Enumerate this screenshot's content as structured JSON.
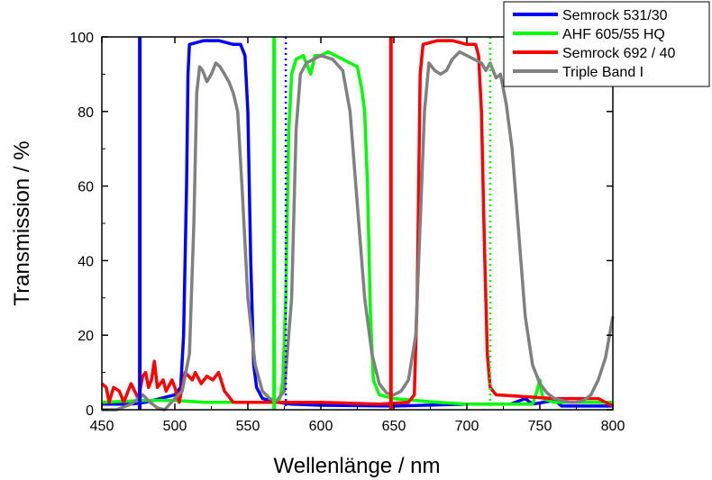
{
  "chart_data": {
    "type": "line",
    "title": "",
    "xlabel": "Wellenlänge / nm",
    "ylabel": "Transmission / %",
    "xlim": [
      450,
      800
    ],
    "ylim": [
      0,
      100
    ],
    "xticks": [
      450,
      500,
      550,
      600,
      650,
      700,
      750,
      800
    ],
    "yticks": [
      0,
      20,
      40,
      60,
      80,
      100
    ],
    "grid": false,
    "legend_position": "top-right",
    "colors": {
      "blue": "#0000ff",
      "green": "#00ff00",
      "red": "#ff0000",
      "gray": "#808080"
    },
    "series": [
      {
        "name": "Semrock 531/30",
        "color": "#0000ff",
        "points": [
          [
            450,
            1.5
          ],
          [
            470,
            1.5
          ],
          [
            480,
            2
          ],
          [
            490,
            3
          ],
          [
            500,
            4
          ],
          [
            504,
            6
          ],
          [
            506,
            20
          ],
          [
            508,
            60
          ],
          [
            509,
            90
          ],
          [
            510,
            98
          ],
          [
            520,
            99
          ],
          [
            530,
            99
          ],
          [
            540,
            98
          ],
          [
            545,
            98
          ],
          [
            548,
            95
          ],
          [
            550,
            80
          ],
          [
            552,
            40
          ],
          [
            554,
            12
          ],
          [
            556,
            6
          ],
          [
            560,
            3
          ],
          [
            565,
            2.5
          ],
          [
            570,
            2
          ],
          [
            580,
            1.5
          ],
          [
            600,
            1.2
          ],
          [
            650,
            1
          ],
          [
            700,
            1.5
          ],
          [
            730,
            1.5
          ],
          [
            740,
            3
          ],
          [
            745,
            1.5
          ],
          [
            760,
            2.5
          ],
          [
            765,
            1
          ],
          [
            800,
            1
          ]
        ]
      },
      {
        "name": "AHF 605/55 HQ",
        "color": "#00ff00",
        "points": [
          [
            450,
            2
          ],
          [
            480,
            2.5
          ],
          [
            500,
            2.5
          ],
          [
            520,
            2
          ],
          [
            540,
            2
          ],
          [
            560,
            2
          ],
          [
            570,
            2
          ],
          [
            572,
            3
          ],
          [
            574,
            8
          ],
          [
            576,
            30
          ],
          [
            578,
            75
          ],
          [
            580,
            90
          ],
          [
            583,
            94
          ],
          [
            588,
            95
          ],
          [
            593,
            90
          ],
          [
            596,
            95
          ],
          [
            600,
            95
          ],
          [
            605,
            96
          ],
          [
            610,
            95
          ],
          [
            615,
            94
          ],
          [
            620,
            93
          ],
          [
            625,
            92
          ],
          [
            628,
            86
          ],
          [
            630,
            80
          ],
          [
            632,
            60
          ],
          [
            634,
            25
          ],
          [
            636,
            8
          ],
          [
            640,
            4
          ],
          [
            650,
            3
          ],
          [
            680,
            2
          ],
          [
            700,
            1.5
          ],
          [
            745,
            1.5
          ],
          [
            748,
            5
          ],
          [
            750,
            8
          ],
          [
            752,
            3
          ],
          [
            760,
            2
          ],
          [
            800,
            2
          ]
        ]
      },
      {
        "name": "Semrock 692 / 40",
        "color": "#ff0000",
        "points": [
          [
            450,
            7
          ],
          [
            453,
            6
          ],
          [
            455,
            2
          ],
          [
            458,
            6
          ],
          [
            462,
            5
          ],
          [
            465,
            2
          ],
          [
            470,
            7
          ],
          [
            475,
            3
          ],
          [
            478,
            9
          ],
          [
            480,
            10
          ],
          [
            482,
            6
          ],
          [
            484,
            8
          ],
          [
            486,
            13
          ],
          [
            488,
            6
          ],
          [
            492,
            8
          ],
          [
            494,
            5
          ],
          [
            498,
            8
          ],
          [
            500,
            6
          ],
          [
            503,
            2
          ],
          [
            507,
            10
          ],
          [
            512,
            8
          ],
          [
            514,
            10
          ],
          [
            518,
            7
          ],
          [
            522,
            9
          ],
          [
            526,
            8
          ],
          [
            530,
            10
          ],
          [
            534,
            5
          ],
          [
            540,
            2
          ],
          [
            560,
            2
          ],
          [
            600,
            2
          ],
          [
            640,
            1.5
          ],
          [
            660,
            2
          ],
          [
            664,
            4
          ],
          [
            666,
            30
          ],
          [
            668,
            90
          ],
          [
            670,
            98
          ],
          [
            680,
            99
          ],
          [
            690,
            99
          ],
          [
            700,
            98
          ],
          [
            706,
            98
          ],
          [
            708,
            95
          ],
          [
            710,
            80
          ],
          [
            712,
            45
          ],
          [
            714,
            15
          ],
          [
            716,
            6
          ],
          [
            720,
            4
          ],
          [
            760,
            3
          ],
          [
            780,
            3
          ],
          [
            790,
            3
          ],
          [
            800,
            1
          ]
        ]
      },
      {
        "name": "Triple Band I",
        "color": "#808080",
        "points": [
          [
            450,
            0
          ],
          [
            460,
            0
          ],
          [
            470,
            1.5
          ],
          [
            478,
            4
          ],
          [
            483,
            2
          ],
          [
            488,
            0.5
          ],
          [
            493,
            0
          ],
          [
            500,
            3
          ],
          [
            505,
            5
          ],
          [
            510,
            15
          ],
          [
            513,
            50
          ],
          [
            515,
            85
          ],
          [
            517,
            92
          ],
          [
            519,
            91
          ],
          [
            522,
            88
          ],
          [
            525,
            90
          ],
          [
            528,
            93
          ],
          [
            531,
            92
          ],
          [
            534,
            90
          ],
          [
            537,
            88
          ],
          [
            540,
            85
          ],
          [
            543,
            80
          ],
          [
            546,
            60
          ],
          [
            550,
            30
          ],
          [
            555,
            12
          ],
          [
            560,
            5
          ],
          [
            565,
            3
          ],
          [
            570,
            2.5
          ],
          [
            575,
            5
          ],
          [
            580,
            30
          ],
          [
            583,
            75
          ],
          [
            586,
            90
          ],
          [
            590,
            93
          ],
          [
            595,
            94
          ],
          [
            600,
            95
          ],
          [
            608,
            94
          ],
          [
            615,
            91
          ],
          [
            620,
            80
          ],
          [
            625,
            55
          ],
          [
            630,
            30
          ],
          [
            635,
            15
          ],
          [
            640,
            7
          ],
          [
            645,
            4.5
          ],
          [
            650,
            4
          ],
          [
            655,
            5
          ],
          [
            660,
            8
          ],
          [
            665,
            20
          ],
          [
            668,
            50
          ],
          [
            671,
            80
          ],
          [
            674,
            93
          ],
          [
            678,
            91
          ],
          [
            682,
            90
          ],
          [
            686,
            91
          ],
          [
            690,
            94
          ],
          [
            695,
            96
          ],
          [
            700,
            95
          ],
          [
            705,
            94
          ],
          [
            710,
            93
          ],
          [
            713,
            91
          ],
          [
            716,
            93
          ],
          [
            720,
            89
          ],
          [
            723,
            90
          ],
          [
            727,
            82
          ],
          [
            731,
            70
          ],
          [
            735,
            50
          ],
          [
            740,
            25
          ],
          [
            745,
            12
          ],
          [
            750,
            7
          ],
          [
            755,
            4.5
          ],
          [
            760,
            3
          ],
          [
            770,
            2
          ],
          [
            775,
            2
          ],
          [
            780,
            2.5
          ],
          [
            785,
            4
          ],
          [
            790,
            8
          ],
          [
            795,
            14
          ],
          [
            800,
            25
          ]
        ]
      },
      {
        "name": "",
        "color": "#0000ff",
        "style": "vertical-solid",
        "x": 476
      },
      {
        "name": "",
        "color": "#00ff00",
        "style": "vertical-solid",
        "x": 568
      },
      {
        "name": "",
        "color": "#ff0000",
        "style": "vertical-solid",
        "x": 648
      },
      {
        "name": "",
        "color": "#0000ff",
        "style": "vertical-dotted",
        "x": 576
      },
      {
        "name": "",
        "color": "#00ff00",
        "style": "vertical-dotted",
        "x": 716
      }
    ]
  }
}
